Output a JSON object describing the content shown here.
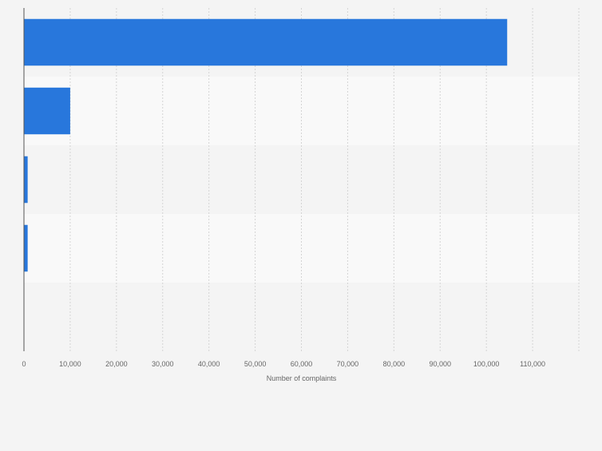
{
  "chart_data": {
    "type": "bar",
    "orientation": "horizontal",
    "categories": [
      "",
      "",
      "",
      "",
      ""
    ],
    "values": [
      104500,
      10000,
      800,
      800,
      0
    ],
    "xlabel": "Number of complaints",
    "xlim": [
      0,
      120000
    ],
    "xticks": [
      0,
      10000,
      20000,
      30000,
      40000,
      50000,
      60000,
      70000,
      80000,
      90000,
      100000,
      110000
    ],
    "xtick_labels": [
      "0",
      "10,000",
      "20,000",
      "30,000",
      "40,000",
      "50,000",
      "60,000",
      "70,000",
      "80,000",
      "90,000",
      "100,000",
      "110,000"
    ],
    "grid": true,
    "bar_color": "#2877dc",
    "band_colors": [
      "#f4f4f4",
      "#f9f9f9"
    ]
  }
}
